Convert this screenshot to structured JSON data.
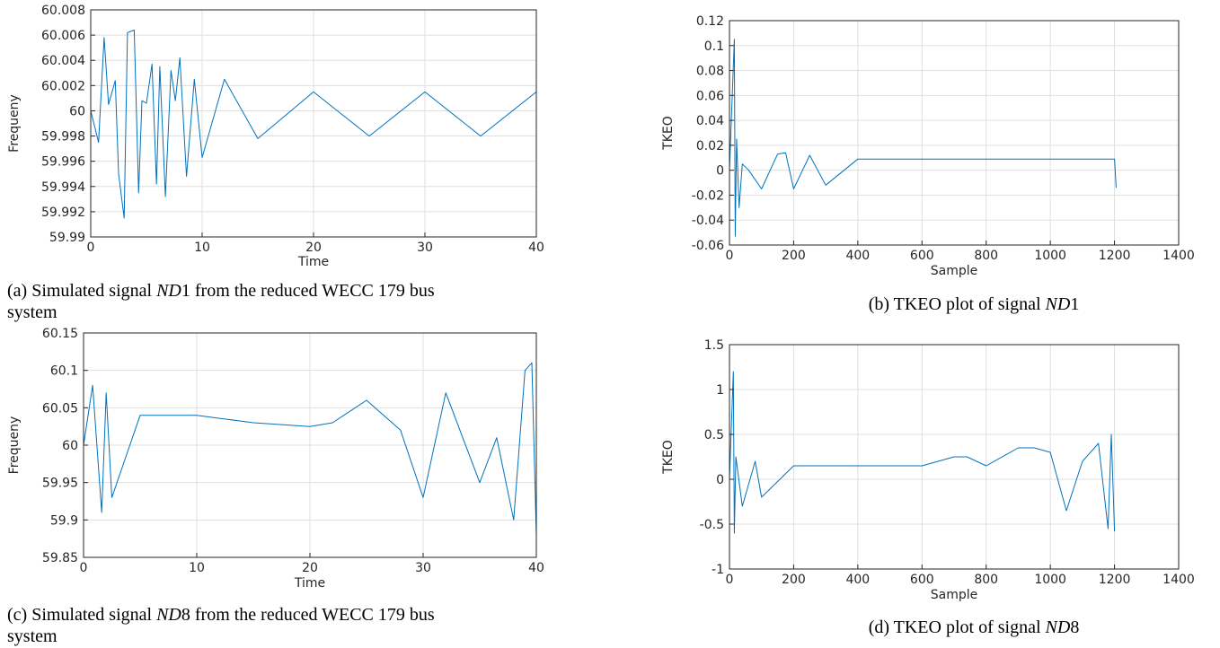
{
  "colors": {
    "line": "#0072BD",
    "grid": "#dfdfdf",
    "axis": "#262626"
  },
  "chart_data": [
    {
      "id": "a",
      "type": "line",
      "xlabel": "Time",
      "ylabel": "Frequeny",
      "xlim": [
        0,
        40
      ],
      "ylim": [
        59.99,
        60.008
      ],
      "xticks": [
        0,
        10,
        20,
        30,
        40
      ],
      "xticklabels": [
        "0",
        "10",
        "20",
        "30",
        "40"
      ],
      "yticks": [
        59.99,
        59.992,
        59.994,
        59.996,
        59.998,
        60,
        60.002,
        60.004,
        60.006,
        60.008
      ],
      "yticklabels": [
        "59.99",
        "59.992",
        "59.994",
        "59.996",
        "59.998",
        "60",
        "60.002",
        "60.004",
        "60.006",
        "60.008"
      ],
      "grid": true,
      "caption": {
        "prefix": "(a) Simulated signal ",
        "math": "ND",
        "num": "1",
        "suffix": " from the reduced WECC 179 bus",
        "line2": "system"
      },
      "series": [
        {
          "x": [
            0,
            0.7,
            1.2,
            1.6,
            2.2,
            2.5,
            3.0,
            3.3,
            3.9,
            4.3,
            4.6,
            5.0,
            5.5,
            5.9,
            6.2,
            6.7,
            7.2,
            7.6,
            8.0,
            8.6,
            9.3,
            10.0,
            12.0,
            15.0,
            20.0,
            25.0,
            30.0,
            35.0,
            40.0
          ],
          "y": [
            60,
            59.9975,
            60.0058,
            60.0005,
            60.0024,
            59.995,
            59.9915,
            60.0062,
            60.0064,
            59.9935,
            60.0008,
            60.0006,
            60.0037,
            59.9942,
            60.0035,
            59.9932,
            60.0032,
            60.0008,
            60.0042,
            59.9948,
            60.0025,
            59.9963,
            60.0025,
            59.9978,
            60.0015,
            59.998,
            60.0015,
            59.998,
            60.0015
          ]
        }
      ]
    },
    {
      "id": "b",
      "type": "line",
      "xlabel": "Sample",
      "ylabel": "TKEO",
      "xlim": [
        0,
        1400
      ],
      "ylim": [
        -0.06,
        0.12
      ],
      "xticks": [
        0,
        200,
        400,
        600,
        800,
        1000,
        1200,
        1400
      ],
      "xticklabels": [
        "0",
        "200",
        "400",
        "600",
        "800",
        "1000",
        "1200",
        "1400"
      ],
      "yticks": [
        -0.06,
        -0.04,
        -0.02,
        0,
        0.02,
        0.04,
        0.06,
        0.08,
        0.1,
        0.12
      ],
      "yticklabels": [
        "-0.06",
        "-0.04",
        "-0.02",
        "0",
        "0.02",
        "0.04",
        "0.06",
        "0.08",
        "0.1",
        "0.12"
      ],
      "grid": true,
      "caption": {
        "prefix": "(b) TKEO plot of signal ",
        "math": "ND",
        "num": "1",
        "suffix": "",
        "line2": ""
      },
      "series": [
        {
          "x": [
            0,
            15,
            18,
            22,
            30,
            40,
            60,
            100,
            150,
            175,
            200,
            250,
            300,
            400,
            600,
            800,
            1000,
            1200,
            1205
          ],
          "y": [
            0,
            0.105,
            -0.053,
            0.025,
            -0.03,
            0.005,
            0,
            -0.015,
            0.013,
            0.014,
            -0.015,
            0.012,
            -0.012,
            0.009,
            0.009,
            0.009,
            0.009,
            0.009,
            -0.014
          ]
        }
      ]
    },
    {
      "id": "c",
      "type": "line",
      "xlabel": "Time",
      "ylabel": "Frequeny",
      "xlim": [
        0,
        40
      ],
      "ylim": [
        59.85,
        60.15
      ],
      "xticks": [
        0,
        10,
        20,
        30,
        40
      ],
      "xticklabels": [
        "0",
        "10",
        "20",
        "30",
        "40"
      ],
      "yticks": [
        59.85,
        59.9,
        59.95,
        60,
        60.05,
        60.1,
        60.15
      ],
      "yticklabels": [
        "59.85",
        "59.9",
        "59.95",
        "60",
        "60.05",
        "60.1",
        "60.15"
      ],
      "grid": true,
      "caption": {
        "prefix": "(c) Simulated signal ",
        "math": "ND",
        "num": "8",
        "suffix": " from the reduced WECC 179 bus",
        "line2": "system"
      },
      "series": [
        {
          "x": [
            0,
            0.8,
            1.6,
            2.0,
            2.5,
            5,
            10,
            15,
            20,
            22,
            25,
            28,
            30,
            32,
            35,
            36.5,
            38,
            39,
            39.6,
            40
          ],
          "y": [
            60,
            60.08,
            59.91,
            60.07,
            59.93,
            60.04,
            60.04,
            60.03,
            60.025,
            60.03,
            60.06,
            60.02,
            59.93,
            60.07,
            59.95,
            60.01,
            59.9,
            60.1,
            60.11,
            59.88
          ]
        }
      ]
    },
    {
      "id": "d",
      "type": "line",
      "xlabel": "Sample",
      "ylabel": "TKEO",
      "xlim": [
        0,
        1400
      ],
      "ylim": [
        -1,
        1.5
      ],
      "xticks": [
        0,
        200,
        400,
        600,
        800,
        1000,
        1200,
        1400
      ],
      "xticklabels": [
        "0",
        "200",
        "400",
        "600",
        "800",
        "1000",
        "1200",
        "1400"
      ],
      "yticks": [
        -1,
        -0.5,
        0,
        0.5,
        1,
        1.5
      ],
      "yticklabels": [
        "-1",
        "-0.5",
        "0",
        "0.5",
        "1",
        "1.5"
      ],
      "grid": true,
      "caption": {
        "prefix": "(d) TKEO plot of signal ",
        "math": "ND",
        "num": "8",
        "suffix": "",
        "line2": ""
      },
      "series": [
        {
          "x": [
            0,
            12,
            15,
            20,
            40,
            80,
            100,
            200,
            400,
            600,
            700,
            740,
            800,
            900,
            950,
            1000,
            1050,
            1100,
            1150,
            1180,
            1190,
            1200
          ],
          "y": [
            0,
            1.2,
            -0.6,
            0.25,
            -0.3,
            0.2,
            -0.2,
            0.15,
            0.15,
            0.15,
            0.25,
            0.25,
            0.15,
            0.35,
            0.35,
            0.3,
            -0.35,
            0.2,
            0.4,
            -0.55,
            0.5,
            -0.58
          ]
        }
      ]
    }
  ]
}
